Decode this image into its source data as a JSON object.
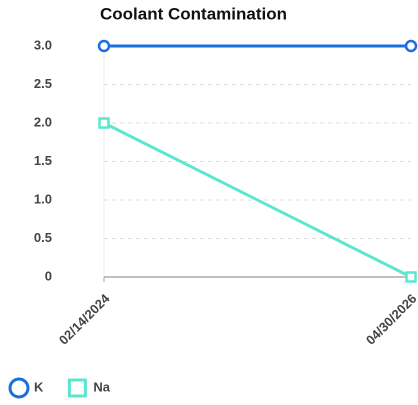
{
  "chart_data": {
    "type": "line",
    "title": "Coolant Contamination",
    "categories": [
      "02/14/2024",
      "04/30/2026"
    ],
    "series": [
      {
        "name": "K",
        "color": "#1a6fdf",
        "marker": "circle",
        "values": [
          3,
          3
        ]
      },
      {
        "name": "Na",
        "color": "#5ce6d0",
        "marker": "square",
        "values": [
          2,
          0
        ]
      }
    ],
    "ylim": [
      0,
      3
    ],
    "yticks": [
      0,
      0.5,
      {
        "value": 1,
        "label": "1.0"
      },
      1.5,
      {
        "value": 2,
        "label": "2.0"
      },
      2.5,
      {
        "value": 3,
        "label": "3.0"
      }
    ],
    "grid": true,
    "legend": "bottom"
  }
}
